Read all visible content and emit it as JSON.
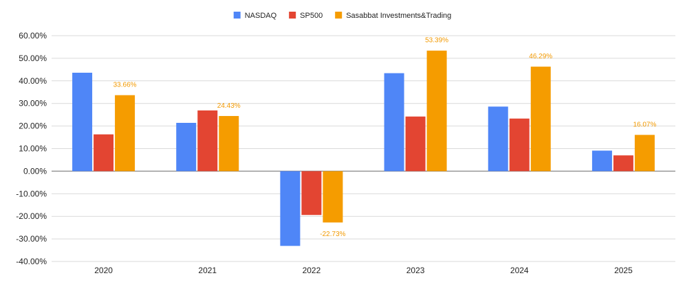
{
  "chart_data": {
    "type": "bar",
    "title": "",
    "xlabel": "",
    "ylabel": "",
    "categories": [
      "2020",
      "2021",
      "2022",
      "2023",
      "2024",
      "2025"
    ],
    "series": [
      {
        "name": "NASDAQ",
        "color": "#4f86f7",
        "values": [
          43.6,
          21.4,
          -33.1,
          43.4,
          28.6,
          9.1
        ]
      },
      {
        "name": "SP500",
        "color": "#e34532",
        "values": [
          16.3,
          26.9,
          -19.4,
          24.2,
          23.3,
          7.0
        ]
      },
      {
        "name": "Sasabbat Investments&Trading",
        "color": "#f59c00",
        "values": [
          33.66,
          24.43,
          -22.73,
          53.39,
          46.29,
          16.07
        ],
        "labels": [
          "33.66%",
          "24.43%",
          "-22.73%",
          "53.39%",
          "46.29%",
          "16.07%"
        ]
      }
    ],
    "ylim": [
      -40,
      60
    ],
    "yticks": [
      60,
      50,
      40,
      30,
      20,
      10,
      0,
      -10,
      -20,
      -30,
      -40
    ],
    "ytick_labels": [
      "60.00%",
      "50.00%",
      "40.00%",
      "30.00%",
      "20.00%",
      "10.00%",
      "0.00%",
      "-10.00%",
      "-20.00%",
      "-30.00%",
      "-40.00%"
    ],
    "grid": true,
    "legend_position": "top-center"
  }
}
